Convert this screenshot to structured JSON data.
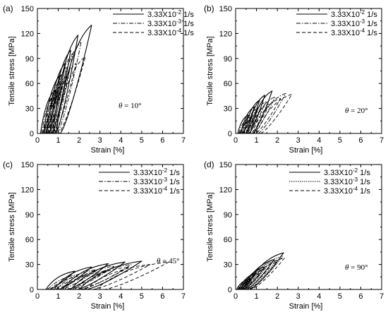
{
  "chart_data": [
    {
      "type": "line",
      "panel_label": "(a)",
      "xlabel": "Strain [%]",
      "ylabel": "Tensile stress [MPa]",
      "xlim": [
        0,
        7
      ],
      "ylim": [
        0,
        150
      ],
      "x_ticks": [
        "0",
        "1",
        "2",
        "3",
        "4",
        "5",
        "6",
        "7"
      ],
      "y_ticks": [
        "0",
        "30",
        "60",
        "90",
        "120",
        "150"
      ],
      "grid": false,
      "legend_position": "top-right",
      "annotation": {
        "symbol": "θ",
        "text": " = 10°"
      },
      "series": [
        {
          "name": "3.33X10-2 1/s",
          "label_base": "3.33X10",
          "label_exp": "-2",
          "label_unit": " 1/s",
          "style": "solid",
          "loops": [
            {
              "start": 0.15,
              "peak": [
                0.85,
                52
              ]
            },
            {
              "start": 0.3,
              "peak": [
                1.1,
                70
              ]
            },
            {
              "start": 0.45,
              "peak": [
                1.35,
                85
              ]
            },
            {
              "start": 0.6,
              "peak": [
                1.6,
                100
              ]
            },
            {
              "start": 0.75,
              "peak": [
                1.95,
                118
              ]
            },
            {
              "start": 0.9,
              "peak": [
                2.6,
                130
              ]
            }
          ]
        },
        {
          "name": "3.33X10-3 1/s",
          "label_base": "3.33X10",
          "label_exp": "-3",
          "label_unit": " 1/s",
          "style": "dashdot",
          "loops": [
            {
              "start": 0.2,
              "peak": [
                0.9,
                50
              ]
            },
            {
              "start": 0.35,
              "peak": [
                1.15,
                66
              ]
            },
            {
              "start": 0.5,
              "peak": [
                1.4,
                80
              ]
            },
            {
              "start": 0.65,
              "peak": [
                1.7,
                96
              ]
            },
            {
              "start": 0.8,
              "peak": [
                2.1,
                110
              ]
            }
          ]
        },
        {
          "name": "3.33X10-4 1/s",
          "label_base": "3.33X10",
          "label_exp": "-4",
          "label_unit": " 1/s",
          "style": "dashed",
          "loops": [
            {
              "start": 0.25,
              "peak": [
                0.95,
                45
              ]
            },
            {
              "start": 0.4,
              "peak": [
                1.2,
                60
              ]
            },
            {
              "start": 0.55,
              "peak": [
                1.5,
                72
              ]
            },
            {
              "start": 0.7,
              "peak": [
                1.85,
                84
              ]
            },
            {
              "start": 0.85,
              "peak": [
                2.3,
                92
              ]
            }
          ]
        }
      ]
    },
    {
      "type": "line",
      "panel_label": "(b)",
      "xlabel": "Strain [%]",
      "ylabel": "Tensile stress [MPa]",
      "xlim": [
        0,
        7
      ],
      "ylim": [
        0,
        150
      ],
      "x_ticks": [
        "0",
        "1",
        "2",
        "3",
        "4",
        "5",
        "6",
        "7"
      ],
      "y_ticks": [
        "0",
        "30",
        "60",
        "90",
        "120",
        "150"
      ],
      "grid": false,
      "legend_position": "top-right",
      "annotation": {
        "symbol": "θ",
        "text": " = 20°"
      },
      "series": [
        {
          "name": "3.33X10-2 1/s",
          "label_base": "3.33X10",
          "label_exp": "-2",
          "label_unit": " 1/s",
          "style": "solid",
          "loops": [
            {
              "start": 0.1,
              "peak": [
                0.6,
                22
              ]
            },
            {
              "start": 0.25,
              "peak": [
                0.9,
                32
              ]
            },
            {
              "start": 0.4,
              "peak": [
                1.15,
                40
              ]
            },
            {
              "start": 0.55,
              "peak": [
                1.4,
                46
              ]
            },
            {
              "start": 0.7,
              "peak": [
                1.75,
                51
              ]
            }
          ]
        },
        {
          "name": "3.33X10-3 1/s",
          "label_base": "3.33X10",
          "label_exp": "-3",
          "label_unit": " 1/s",
          "style": "dashdot",
          "loops": [
            {
              "start": 0.15,
              "peak": [
                0.7,
                20
              ]
            },
            {
              "start": 0.3,
              "peak": [
                1.05,
                30
              ]
            },
            {
              "start": 0.5,
              "peak": [
                1.45,
                38
              ]
            },
            {
              "start": 0.7,
              "peak": [
                1.9,
                44
              ]
            },
            {
              "start": 0.9,
              "peak": [
                2.4,
                48
              ]
            }
          ]
        },
        {
          "name": "3.33X10-4 1/s",
          "label_base": "3.33X10",
          "label_exp": "-4",
          "label_unit": " 1/s",
          "style": "dashed",
          "loops": [
            {
              "start": 0.2,
              "peak": [
                0.8,
                18
              ]
            },
            {
              "start": 0.4,
              "peak": [
                1.2,
                28
              ]
            },
            {
              "start": 0.6,
              "peak": [
                1.65,
                36
              ]
            },
            {
              "start": 0.8,
              "peak": [
                2.15,
                42
              ]
            },
            {
              "start": 1.0,
              "peak": [
                2.7,
                47
              ]
            }
          ]
        }
      ]
    },
    {
      "type": "line",
      "panel_label": "(c)",
      "xlabel": "Strain [%]",
      "ylabel": "Tensile stress [MPa]",
      "xlim": [
        0,
        7
      ],
      "ylim": [
        0,
        150
      ],
      "x_ticks": [
        "0",
        "1",
        "2",
        "3",
        "4",
        "5",
        "6",
        "7"
      ],
      "y_ticks": [
        "0",
        "30",
        "60",
        "90",
        "120",
        "150"
      ],
      "grid": false,
      "legend_position": "top-right",
      "annotation": {
        "symbol": "θ",
        "text": " = 45°"
      },
      "series": [
        {
          "name": "3.33X10-2 1/s",
          "label_base": "3.33X10",
          "label_exp": "-2",
          "label_unit": " 1/s",
          "style": "solid",
          "loops": [
            {
              "start": 0.4,
              "peak": [
                1.8,
                22
              ]
            },
            {
              "start": 0.8,
              "peak": [
                2.6,
                27
              ]
            },
            {
              "start": 1.2,
              "peak": [
                3.4,
                31
              ]
            },
            {
              "start": 1.6,
              "peak": [
                4.2,
                33
              ]
            },
            {
              "start": 2.0,
              "peak": [
                5.0,
                34
              ]
            }
          ]
        },
        {
          "name": "3.33X10-3 1/s",
          "label_base": "3.33X10",
          "label_exp": "-3",
          "label_unit": " 1/s",
          "style": "dashdot",
          "loops": [
            {
              "start": 0.5,
              "peak": [
                2.0,
                18
              ]
            },
            {
              "start": 0.9,
              "peak": [
                2.9,
                24
              ]
            },
            {
              "start": 1.3,
              "peak": [
                3.7,
                28
              ]
            },
            {
              "start": 1.8,
              "peak": [
                4.5,
                30
              ]
            }
          ]
        },
        {
          "name": "3.33X10-4 1/s",
          "label_base": "3.33X10",
          "label_exp": "-4",
          "label_unit": " 1/s",
          "style": "dashed",
          "loops": [
            {
              "start": 0.6,
              "peak": [
                2.3,
                17
              ]
            },
            {
              "start": 1.1,
              "peak": [
                3.3,
                22
              ]
            },
            {
              "start": 1.7,
              "peak": [
                4.4,
                27
              ]
            },
            {
              "start": 2.3,
              "peak": [
                5.4,
                30
              ]
            },
            {
              "start": 2.8,
              "peak": [
                6.3,
                33
              ]
            }
          ]
        }
      ]
    },
    {
      "type": "line",
      "panel_label": "(d)",
      "xlabel": "Strain [%]",
      "ylabel": "Tensile stress [MPa]",
      "xlim": [
        0,
        7
      ],
      "ylim": [
        0,
        150
      ],
      "x_ticks": [
        "0",
        "1",
        "2",
        "3",
        "4",
        "5",
        "6",
        "7"
      ],
      "y_ticks": [
        "0",
        "30",
        "60",
        "90",
        "120",
        "150"
      ],
      "grid": false,
      "legend_position": "top-right",
      "annotation": {
        "symbol": "θ",
        "text": " = 90°"
      },
      "series": [
        {
          "name": "3.33X10-2 1/s",
          "label_base": "3.33X10",
          "label_exp": "-2",
          "label_unit": " 1/s",
          "style": "solid",
          "loops": [
            {
              "start": 0.05,
              "peak": [
                0.6,
                12
              ]
            },
            {
              "start": 0.15,
              "peak": [
                1.0,
                20
              ]
            },
            {
              "start": 0.25,
              "peak": [
                1.4,
                27
              ]
            },
            {
              "start": 0.35,
              "peak": [
                1.85,
                36
              ]
            },
            {
              "start": 0.45,
              "peak": [
                2.3,
                44
              ]
            }
          ]
        },
        {
          "name": "3.33X10-3 1/s",
          "label_base": "3.33X10",
          "label_exp": "-3",
          "label_unit": " 1/s",
          "style": "dotted",
          "loops": [
            {
              "start": 0.1,
              "peak": [
                0.7,
                12
              ]
            },
            {
              "start": 0.2,
              "peak": [
                1.1,
                20
              ]
            },
            {
              "start": 0.3,
              "peak": [
                1.5,
                28
              ]
            },
            {
              "start": 0.4,
              "peak": [
                1.95,
                35
              ]
            },
            {
              "start": 0.5,
              "peak": [
                2.25,
                40
              ]
            }
          ]
        },
        {
          "name": "3.33X10-4 1/s",
          "label_base": "3.33X10",
          "label_exp": "-4",
          "label_unit": " 1/s",
          "style": "dashed",
          "loops": [
            {
              "start": 0.1,
              "peak": [
                0.75,
                11
              ]
            },
            {
              "start": 0.25,
              "peak": [
                1.2,
                19
              ]
            },
            {
              "start": 0.35,
              "peak": [
                1.6,
                26
              ]
            },
            {
              "start": 0.45,
              "peak": [
                2.0,
                33
              ]
            },
            {
              "start": 0.55,
              "peak": [
                2.35,
                38
              ]
            }
          ]
        }
      ]
    }
  ]
}
